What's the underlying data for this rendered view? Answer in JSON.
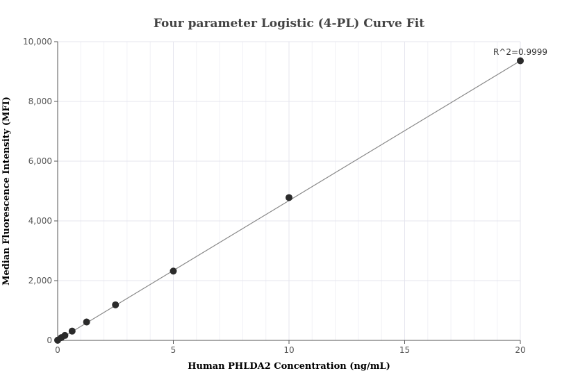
{
  "chart_data": {
    "type": "scatter",
    "title": "Four parameter Logistic (4-PL) Curve Fit",
    "xlabel": "Human PHLDA2 Concentration (ng/mL)",
    "ylabel": "Median Fluorescence Intensity (MFI)",
    "xlim": [
      0,
      20
    ],
    "ylim": [
      0,
      10000
    ],
    "x_ticks": [
      0,
      5,
      10,
      15,
      20
    ],
    "x_tick_labels": [
      "0",
      "5",
      "10",
      "15",
      "20"
    ],
    "y_ticks": [
      0,
      2000,
      4000,
      6000,
      8000,
      10000
    ],
    "y_tick_labels": [
      "0",
      "2,000",
      "4,000",
      "6,000",
      "8,000",
      "10,000"
    ],
    "grid": true,
    "series": [
      {
        "points": [
          {
            "x": 0,
            "y": 5
          },
          {
            "x": 0.156,
            "y": 90
          },
          {
            "x": 0.3125,
            "y": 165
          },
          {
            "x": 0.625,
            "y": 310
          },
          {
            "x": 1.25,
            "y": 615
          },
          {
            "x": 2.5,
            "y": 1190
          },
          {
            "x": 5,
            "y": 2320
          },
          {
            "x": 10,
            "y": 4780
          },
          {
            "x": 20,
            "y": 9360
          }
        ],
        "color": "#2b2b2b"
      }
    ],
    "fit_line": {
      "x": [
        0,
        20
      ],
      "y": [
        0,
        9360
      ],
      "color": "#888888"
    },
    "annotation": "R^2=0.9999"
  }
}
